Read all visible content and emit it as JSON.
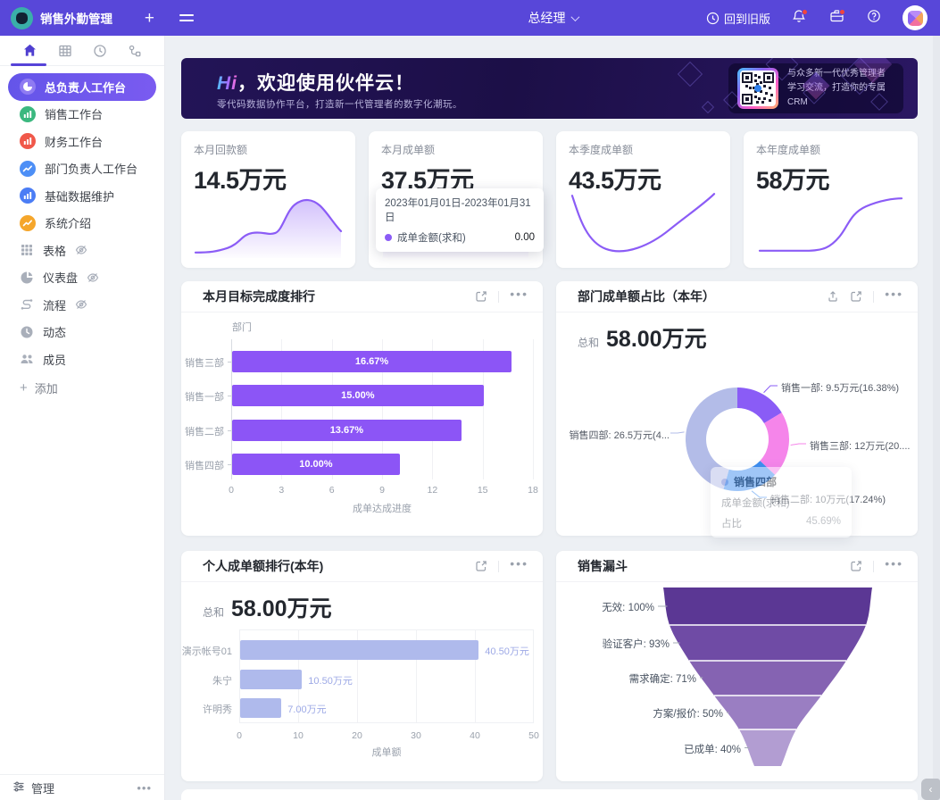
{
  "topbar": {
    "app_title": "销售外勤管理",
    "add_label": "+",
    "role": "总经理",
    "back_to_old": "回到旧版"
  },
  "sidebar": {
    "tabs": [
      {
        "icon": "home",
        "active": true
      },
      {
        "icon": "grid",
        "active": false
      },
      {
        "icon": "clock",
        "active": false
      },
      {
        "icon": "org",
        "active": false
      }
    ],
    "items": [
      {
        "label": "总负责人工作台",
        "icon": "pie-circle",
        "color": "#8F7BF2",
        "active": true,
        "hidden_eye": false
      },
      {
        "label": "销售工作台",
        "icon": "bars-circle",
        "color": "#3BB87F",
        "active": false,
        "hidden_eye": false
      },
      {
        "label": "财务工作台",
        "icon": "bars-circle",
        "color": "#F0584A",
        "active": false,
        "hidden_eye": false
      },
      {
        "label": "部门负责人工作台",
        "icon": "trend-circle",
        "color": "#4D8FF6",
        "active": false,
        "hidden_eye": false
      },
      {
        "label": "基础数据维护",
        "icon": "bars-circle",
        "color": "#4B7DF5",
        "active": false,
        "hidden_eye": false
      },
      {
        "label": "系统介绍",
        "icon": "trend-circle",
        "color": "#F5A62B",
        "active": false,
        "hidden_eye": false
      },
      {
        "label": "表格",
        "icon": "grid-gray",
        "color": "#A9AFBA",
        "active": false,
        "hidden_eye": true
      },
      {
        "label": "仪表盘",
        "icon": "pie-gray",
        "color": "#A9AFBA",
        "active": false,
        "hidden_eye": true
      },
      {
        "label": "流程",
        "icon": "flow-gray",
        "color": "#A9AFBA",
        "active": false,
        "hidden_eye": true
      },
      {
        "label": "动态",
        "icon": "clock-gray",
        "color": "#A9AFBA",
        "active": false,
        "hidden_eye": false
      },
      {
        "label": "成员",
        "icon": "people-gray",
        "color": "#A9AFBA",
        "active": false,
        "hidden_eye": false
      }
    ],
    "add_label": "添加",
    "manage_label": "管理"
  },
  "banner": {
    "title_hi": "Hi",
    "title_rest": "，欢迎使用伙伴云！",
    "subtitle": "零代码数据协作平台，打造新一代管理者的数字化潮玩。",
    "qr_caption_line1": "与众多新一代优秀管理者",
    "qr_caption_line2": "学习交流，打造你的专属CRM"
  },
  "stat_cards": [
    {
      "label": "本月回款额",
      "value": "14.5万元",
      "spark": "area1"
    },
    {
      "label": "本月成单额",
      "value": "37.5万元",
      "spark": "area2",
      "tooltip": {
        "date_range": "2023年01月01日-2023年01月31日",
        "series": "成单金额(求和)",
        "value": "0.00"
      }
    },
    {
      "label": "本季度成单额",
      "value": "43.5万元",
      "spark": "lineU"
    },
    {
      "label": "本年度成单额",
      "value": "58万元",
      "spark": "lineS"
    }
  ],
  "cards": {
    "goal": {
      "title": "本月目标完成度排行"
    },
    "dept": {
      "title": "部门成单额占比（本年）",
      "total_label": "总和",
      "total_value": "58.00万元"
    },
    "personal": {
      "title": "个人成单额排行(本年)",
      "total_label": "总和",
      "total_value": "58.00万元"
    },
    "funnel": {
      "title": "销售漏斗"
    }
  },
  "chart_data": [
    {
      "type": "bar",
      "orientation": "horizontal",
      "title": "本月目标完成度排行",
      "categories": [
        "销售三部",
        "销售一部",
        "销售二部",
        "销售四部"
      ],
      "values": [
        16.67,
        15.0,
        13.67,
        10.0
      ],
      "value_labels": [
        "16.67%",
        "15.00%",
        "13.67%",
        "10.00%"
      ],
      "xlabel": "成单达成进度",
      "ylabel": "部门",
      "xlim": [
        0,
        18
      ],
      "xticks": [
        0,
        3,
        6,
        9,
        12,
        15,
        18
      ],
      "bar_color": "#8C55F6",
      "grid": true,
      "legend": "none"
    },
    {
      "type": "pie",
      "title": "部门成单额占比（本年）",
      "total_label": "总和",
      "total_value": "58.00万元",
      "slices": [
        {
          "name": "销售一部",
          "value": 9.5,
          "pct": 16.38,
          "color": "#8A5CF6",
          "label": "销售一部: 9.5万元(16.38%)"
        },
        {
          "name": "销售三部",
          "value": 12,
          "pct": 20.69,
          "color": "#F585EA",
          "label": "销售三部: 12万元(20...."
        },
        {
          "name": "销售二部",
          "value": 10,
          "pct": 17.24,
          "color": "#3E8EF0",
          "label": "销售二部: 10万元(17.24%)"
        },
        {
          "name": "销售四部",
          "value": 26.5,
          "pct": 45.69,
          "color": "#B3BCE8",
          "label": "销售四部: 26.5万元(4..."
        }
      ],
      "tooltip": {
        "name": "销售四部",
        "row_label": "成单金额(求和)",
        "pct_label": "占比",
        "pct_value": "45.69%"
      }
    },
    {
      "type": "bar",
      "orientation": "horizontal",
      "title": "个人成单额排行(本年)",
      "total_label": "总和",
      "total_value": "58.00万元",
      "categories": [
        "演示帐号01",
        "朱宁",
        "许明秀"
      ],
      "values": [
        40.5,
        10.5,
        7.0
      ],
      "value_labels": [
        "40.50万元",
        "10.50万元",
        "7.00万元"
      ],
      "xlabel": "成单额",
      "xlim": [
        0,
        50
      ],
      "xticks": [
        0,
        10,
        20,
        30,
        40,
        50
      ],
      "bar_color": "#AFBAEC",
      "grid": true,
      "legend": "none"
    },
    {
      "type": "funnel",
      "title": "销售漏斗",
      "stages": [
        {
          "label": "无效: 100%",
          "pct": 100,
          "color": "#5B3794"
        },
        {
          "label": "验证客户: 93%",
          "pct": 93,
          "color": "#6F4BA5"
        },
        {
          "label": "需求确定: 71%",
          "pct": 71,
          "color": "#8563B2"
        },
        {
          "label": "方案/报价: 50%",
          "pct": 50,
          "color": "#9A7EC2"
        },
        {
          "label": "已成单: 40%",
          "pct": 40,
          "color": "#B29DD2"
        }
      ]
    }
  ],
  "misc": {
    "collapse_glyph": "‹",
    "dots": "•••"
  }
}
